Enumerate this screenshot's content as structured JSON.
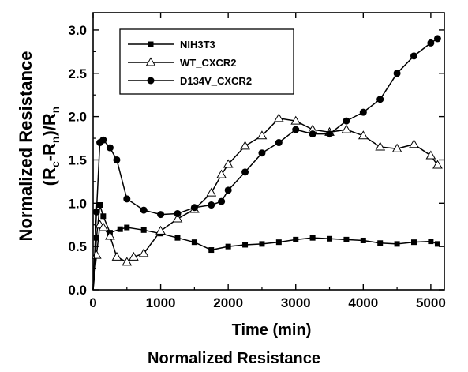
{
  "caption": "Normalized Resistance",
  "chart_data": {
    "type": "line",
    "title": "",
    "xlabel": "Time (min)",
    "ylabel_line1": "Normalized Resistance",
    "ylabel_line2": "(R_c-R_n)/R_n",
    "xlim": [
      0,
      5200
    ],
    "ylim": [
      0,
      3.2
    ],
    "xticks": [
      0,
      1000,
      2000,
      3000,
      4000,
      5000
    ],
    "yticks": [
      0.0,
      0.5,
      1.0,
      1.5,
      2.0,
      2.5,
      3.0
    ],
    "xtick_labels": [
      "0",
      "1000",
      "2000",
      "3000",
      "4000",
      "5000"
    ],
    "ytick_labels": [
      "0.0",
      "0.5",
      "1.0",
      "1.5",
      "2.0",
      "2.5",
      "3.0"
    ],
    "legend_position": "top-left",
    "grid": false,
    "series": [
      {
        "name": "NIH3T3",
        "marker": "square",
        "x": [
          0,
          50,
          100,
          150,
          250,
          400,
          500,
          750,
          1000,
          1250,
          1500,
          1750,
          2000,
          2250,
          2500,
          2750,
          3000,
          3250,
          3500,
          3750,
          4000,
          4250,
          4500,
          4750,
          5000,
          5100
        ],
        "y": [
          0.0,
          0.6,
          0.98,
          0.85,
          0.66,
          0.7,
          0.72,
          0.69,
          0.65,
          0.6,
          0.55,
          0.46,
          0.5,
          0.52,
          0.53,
          0.55,
          0.58,
          0.6,
          0.59,
          0.58,
          0.57,
          0.54,
          0.53,
          0.55,
          0.56,
          0.53
        ]
      },
      {
        "name": "WT_CXCR2",
        "marker": "triangle-open",
        "x": [
          0,
          50,
          100,
          150,
          250,
          350,
          500,
          600,
          750,
          1000,
          1250,
          1500,
          1750,
          1900,
          2000,
          2250,
          2500,
          2750,
          3000,
          3250,
          3500,
          3750,
          4000,
          4250,
          4500,
          4750,
          5000,
          5100
        ],
        "y": [
          0.0,
          0.4,
          0.75,
          0.72,
          0.62,
          0.38,
          0.32,
          0.38,
          0.42,
          0.68,
          0.82,
          0.93,
          1.12,
          1.33,
          1.45,
          1.66,
          1.78,
          1.98,
          1.95,
          1.85,
          1.82,
          1.85,
          1.78,
          1.65,
          1.63,
          1.68,
          1.55,
          1.44
        ]
      },
      {
        "name": "D134V_CXCR2",
        "marker": "circle",
        "x": [
          0,
          50,
          100,
          150,
          250,
          350,
          500,
          750,
          1000,
          1250,
          1500,
          1750,
          1900,
          2000,
          2250,
          2500,
          2750,
          3000,
          3250,
          3500,
          3750,
          4000,
          4250,
          4500,
          4750,
          5000,
          5100
        ],
        "y": [
          0.0,
          0.9,
          1.7,
          1.73,
          1.64,
          1.5,
          1.05,
          0.92,
          0.87,
          0.88,
          0.95,
          0.98,
          1.02,
          1.15,
          1.36,
          1.58,
          1.7,
          1.85,
          1.8,
          1.8,
          1.95,
          2.05,
          2.2,
          2.5,
          2.7,
          2.85,
          2.9
        ]
      }
    ]
  }
}
